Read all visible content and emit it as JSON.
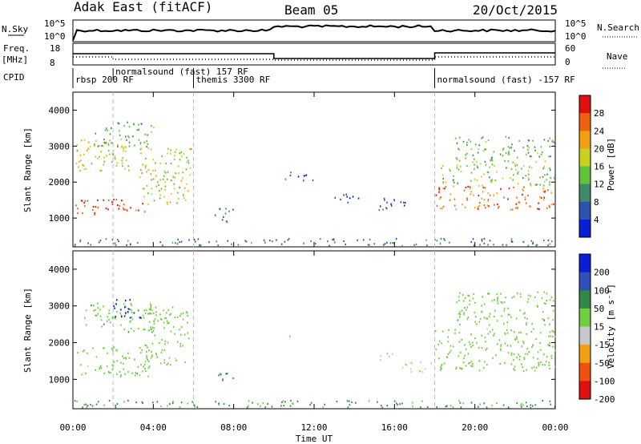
{
  "header": {
    "station": "Adak East (fitACF)",
    "beam": "Beam 05",
    "date": "20/Oct/2015"
  },
  "top_panels": {
    "nsky_label": "N.Sky",
    "nsky_ticks": [
      "10^5",
      "10^0"
    ],
    "nsearch_label": "N.Search",
    "nsearch_ticks": [
      "10^5",
      "10^0"
    ],
    "freq_label": "Freq.",
    "freq_unit": "[MHz]",
    "freq_ticks": [
      "18",
      "8"
    ],
    "nave_label": "Nave",
    "nave_ticks": [
      "60",
      "0"
    ],
    "cpid_label": "CPID",
    "cpid_row1": [
      {
        "text": "rbsp 200 RF",
        "hour": 0.0
      },
      {
        "text": "themis 3300 RF",
        "hour": 6.0
      },
      {
        "text": "normalsound (fast) -157 RF",
        "hour": 18.0
      }
    ],
    "cpid_row2": [
      {
        "text": "normalsound (fast) 157 RF",
        "hour": 2.0
      }
    ]
  },
  "chart_data": [
    {
      "type": "heatmap",
      "title": "",
      "xlabel": "",
      "ylabel": "Slant Range [km]",
      "xlim_hours": [
        0,
        24
      ],
      "ylim": [
        200,
        4500
      ],
      "yticks": [
        1000,
        2000,
        3000,
        4000
      ],
      "colorbar": {
        "label": "Power [dB]",
        "ticks": [
          "4",
          "8",
          "12",
          "16",
          "20",
          "24",
          "28"
        ],
        "range": [
          0,
          30
        ]
      },
      "colors": [
        "#0a1ed8",
        "#2d52b0",
        "#3f8a6a",
        "#5fc23a",
        "#c8d020",
        "#f0a010",
        "#f06010",
        "#e01010"
      ],
      "blobs": [
        {
          "t0": 0.1,
          "t1": 3.6,
          "r0": 1100,
          "r1": 1550,
          "v": 26
        },
        {
          "t0": 0.1,
          "t1": 3.0,
          "r0": 2300,
          "r1": 3200,
          "v": 18
        },
        {
          "t0": 3.3,
          "t1": 5.9,
          "r0": 1400,
          "r1": 3000,
          "v": 16
        },
        {
          "t0": 1.0,
          "t1": 4.0,
          "r0": 3000,
          "r1": 3700,
          "v": 12
        },
        {
          "t0": 7.0,
          "t1": 8.0,
          "r0": 900,
          "r1": 1300,
          "v": 6
        },
        {
          "t0": 10.5,
          "t1": 12.0,
          "r0": 2050,
          "r1": 2300,
          "v": 4
        },
        {
          "t0": 13.0,
          "t1": 14.4,
          "r0": 1450,
          "r1": 1700,
          "v": 4
        },
        {
          "t0": 14.8,
          "t1": 16.6,
          "r0": 1250,
          "r1": 1600,
          "v": 5
        },
        {
          "t0": 18.0,
          "t1": 24.0,
          "r0": 1250,
          "r1": 1900,
          "v": 24
        },
        {
          "t0": 18.3,
          "t1": 24.0,
          "r0": 1900,
          "r1": 2600,
          "v": 14
        },
        {
          "t0": 19.0,
          "t1": 24.0,
          "r0": 2600,
          "r1": 3300,
          "v": 12
        },
        {
          "t0": 0.0,
          "t1": 24.0,
          "r0": 250,
          "r1": 450,
          "v": 8
        }
      ]
    },
    {
      "type": "heatmap",
      "title": "",
      "xlabel": "Time UT",
      "ylabel": "Slant Range [km]",
      "xlim_hours": [
        0,
        24
      ],
      "ylim": [
        200,
        4500
      ],
      "yticks": [
        1000,
        2000,
        3000,
        4000
      ],
      "xticks": [
        "00:00",
        "04:00",
        "08:00",
        "12:00",
        "16:00",
        "20:00",
        "00:00"
      ],
      "colorbar": {
        "label": "Velocity [m s⁻¹]",
        "ticks": [
          "200",
          "100",
          "50",
          "15",
          "-15",
          "-50",
          "-100",
          "-200"
        ],
        "range": [
          -250,
          250
        ]
      },
      "colors": [
        "#0a1ed8",
        "#3050b8",
        "#2f8a4a",
        "#6ed040",
        "#c8c8c8",
        "#f0a010",
        "#f05010",
        "#e01010"
      ],
      "blobs": [
        {
          "t0": 0.1,
          "t1": 3.8,
          "r0": 1100,
          "r1": 1900,
          "v": 0
        },
        {
          "t0": 0.5,
          "t1": 4.0,
          "r0": 2300,
          "r1": 3100,
          "v": 0
        },
        {
          "t0": 2.0,
          "t1": 3.4,
          "r0": 2700,
          "r1": 3200,
          "v": 180
        },
        {
          "t0": 3.4,
          "t1": 5.8,
          "r0": 1400,
          "r1": 3000,
          "v": 0
        },
        {
          "t0": 7.0,
          "t1": 8.0,
          "r0": 900,
          "r1": 1200,
          "v": 40
        },
        {
          "t0": 10.5,
          "t1": 11.0,
          "r0": 2100,
          "r1": 2200,
          "v": 0
        },
        {
          "t0": 15.0,
          "t1": 15.9,
          "r0": 1550,
          "r1": 1750,
          "v": -40
        },
        {
          "t0": 16.3,
          "t1": 17.9,
          "r0": 1200,
          "r1": 1500,
          "v": -40
        },
        {
          "t0": 18.0,
          "t1": 24.0,
          "r0": 1250,
          "r1": 2400,
          "v": 0
        },
        {
          "t0": 19.0,
          "t1": 24.0,
          "r0": 2500,
          "r1": 3400,
          "v": 0
        },
        {
          "t0": 0.0,
          "t1": 24.0,
          "r0": 250,
          "r1": 450,
          "v": 20
        }
      ]
    }
  ]
}
